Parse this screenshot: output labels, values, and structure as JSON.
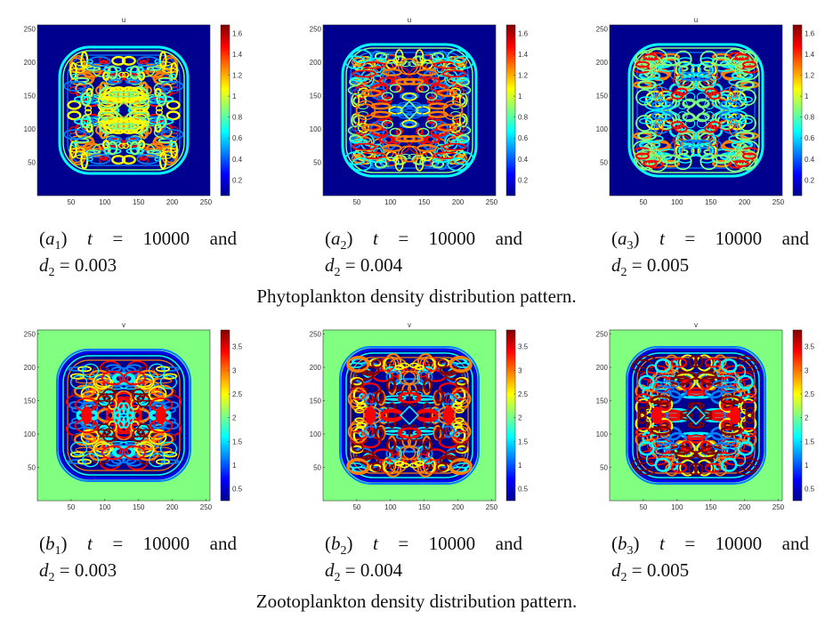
{
  "rows": [
    {
      "id": "a",
      "heatmap_title": "u",
      "colorbar_ticks": [
        "1.6",
        "1.4",
        "1.2",
        "1",
        "0.8",
        "0.6",
        "0.4",
        "0.2"
      ],
      "caption": "Phytoplankton density distribution pattern.",
      "panels": [
        {
          "letter": "a",
          "sub": "1",
          "t_label": "t",
          "eq": "=",
          "t_value": "10000",
          "and": "and",
          "d_label": "d",
          "d_sub": "2",
          "d_eq": "= 0.003"
        },
        {
          "letter": "a",
          "sub": "2",
          "t_label": "t",
          "eq": "=",
          "t_value": "10000",
          "and": "and",
          "d_label": "d",
          "d_sub": "2",
          "d_eq": "= 0.004"
        },
        {
          "letter": "a",
          "sub": "3",
          "t_label": "t",
          "eq": "=",
          "t_value": "10000",
          "and": "and",
          "d_label": "d",
          "d_sub": "2",
          "d_eq": "= 0.005"
        }
      ]
    },
    {
      "id": "b",
      "heatmap_title": "v",
      "colorbar_ticks": [
        "3.5",
        "3",
        "2.5",
        "2",
        "1.5",
        "1",
        "0.5"
      ],
      "caption": "Zootoplankton density distribution pattern.",
      "panels": [
        {
          "letter": "b",
          "sub": "1",
          "t_label": "t",
          "eq": "=",
          "t_value": "10000",
          "and": "and",
          "d_label": "d",
          "d_sub": "2",
          "d_eq": "= 0.003"
        },
        {
          "letter": "b",
          "sub": "2",
          "t_label": "t",
          "eq": "=",
          "t_value": "10000",
          "and": "and",
          "d_label": "d",
          "d_sub": "2",
          "d_eq": "= 0.004"
        },
        {
          "letter": "b",
          "sub": "3",
          "t_label": "t",
          "eq": "=",
          "t_value": "10000",
          "and": "and",
          "d_label": "d",
          "d_sub": "2",
          "d_eq": "= 0.005"
        }
      ]
    }
  ],
  "axis": {
    "x_ticks": [
      "50",
      "100",
      "150",
      "200",
      "250"
    ],
    "y_ticks": [
      "250",
      "200",
      "150",
      "100",
      "50"
    ]
  },
  "colors": {
    "deep_blue": "#00008f",
    "mid_green": "#80ff80",
    "jet": [
      "#00008f",
      "#0000ff",
      "#0080ff",
      "#00ffff",
      "#80ff80",
      "#ffff00",
      "#ff8000",
      "#ff0000",
      "#800000"
    ]
  }
}
